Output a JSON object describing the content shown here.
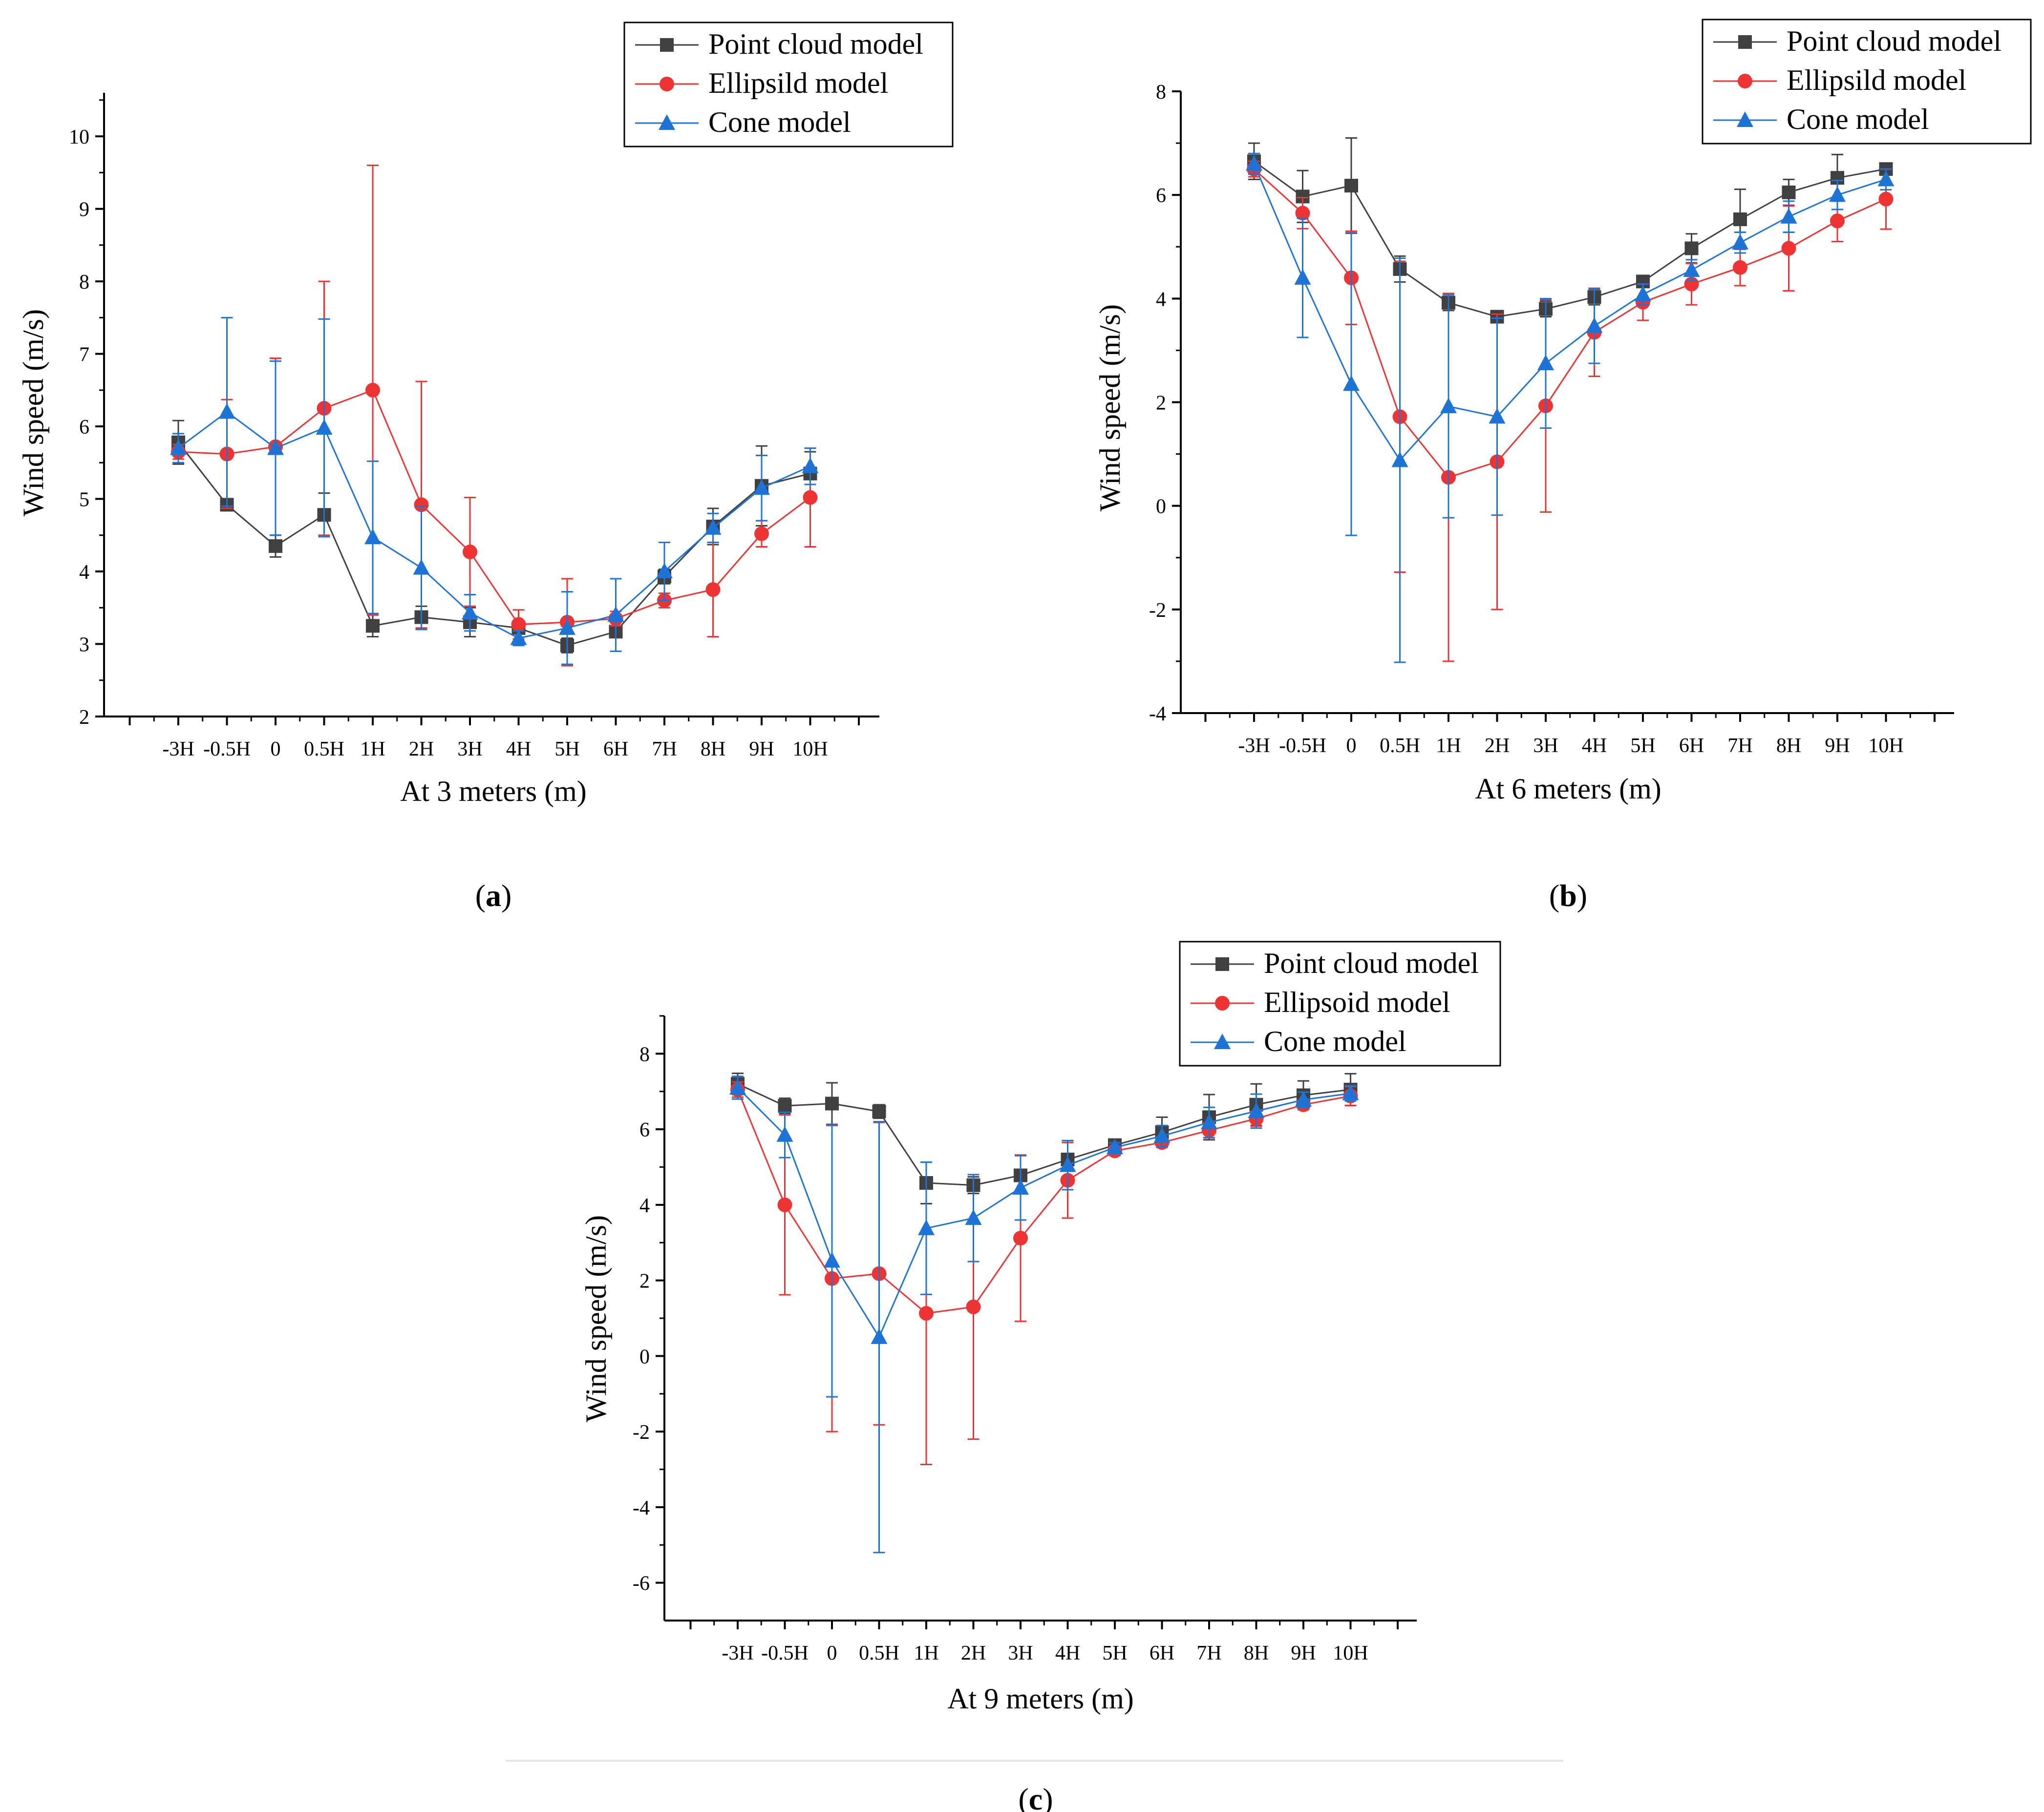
{
  "colors": {
    "point_cloud": "#404040",
    "ellipsoid": "#ee3333",
    "cone": "#1e74d6",
    "axis": "#000000",
    "divider": "#e5e5e5"
  },
  "chart_data": [
    {
      "id": "a",
      "type": "line",
      "caption_paren_open": "(",
      "caption_letter": "a",
      "caption_paren_close": ")",
      "xlabel": "At 3 meters (m)",
      "ylabel": "Wind speed (m/s)",
      "categories": [
        "-3H",
        "-0.5H",
        "0",
        "0.5H",
        "1H",
        "2H",
        "3H",
        "4H",
        "5H",
        "6H",
        "7H",
        "8H",
        "9H",
        "10H"
      ],
      "ylim": [
        2,
        10.6
      ],
      "yticks": [
        2,
        3,
        4,
        5,
        6,
        7,
        8,
        9,
        10
      ],
      "ytick_labels": [
        "2",
        "3",
        "4",
        "5",
        "6",
        "7",
        "8",
        "9",
        "10"
      ],
      "legend_position": "top-right",
      "series": [
        {
          "name": "Point cloud model",
          "color_key": "point_cloud",
          "marker": "square",
          "values": [
            5.78,
            4.92,
            4.35,
            4.78,
            3.25,
            3.37,
            3.3,
            3.22,
            2.98,
            3.17,
            3.93,
            4.62,
            5.18,
            5.35
          ],
          "errors": [
            0.3,
            0.05,
            0.15,
            0.3,
            0.15,
            0.15,
            0.2,
            0.05,
            0.1,
            0.05,
            0.1,
            0.25,
            0.55,
            0.3
          ]
        },
        {
          "name": "Ellipsild model",
          "color_key": "ellipsoid",
          "marker": "circle",
          "values": [
            5.65,
            5.62,
            5.72,
            6.25,
            6.5,
            4.92,
            4.27,
            3.27,
            3.3,
            3.35,
            3.6,
            3.75,
            4.52,
            5.02
          ],
          "errors": [
            0.1,
            0.75,
            1.22,
            1.75,
            3.1,
            1.7,
            0.75,
            0.2,
            0.6,
            0.1,
            0.1,
            0.65,
            0.18,
            0.68
          ]
        },
        {
          "name": "Cone model",
          "color_key": "cone",
          "marker": "triangle",
          "values": [
            5.7,
            6.2,
            5.7,
            5.98,
            4.47,
            4.05,
            3.43,
            3.08,
            3.22,
            3.4,
            4.0,
            4.6,
            5.15,
            5.45
          ],
          "errors": [
            0.2,
            1.3,
            1.2,
            1.5,
            1.05,
            0.85,
            0.25,
            0.1,
            0.5,
            0.5,
            0.4,
            0.2,
            0.45,
            0.25
          ]
        }
      ]
    },
    {
      "id": "b",
      "type": "line",
      "caption_paren_open": "(",
      "caption_letter": "b",
      "caption_paren_close": ")",
      "xlabel": "At 6 meters (m)",
      "ylabel": "Wind speed (m/s)",
      "categories": [
        "-3H",
        "-0.5H",
        "0",
        "0.5H",
        "1H",
        "2H",
        "3H",
        "4H",
        "5H",
        "6H",
        "7H",
        "8H",
        "9H",
        "10H"
      ],
      "ylim": [
        -4,
        8
      ],
      "yticks": [
        -4,
        -2,
        0,
        2,
        4,
        6,
        8
      ],
      "ytick_labels": [
        "-4",
        "-2",
        "0",
        "2",
        "4",
        "6",
        "8"
      ],
      "legend_position": "top-right",
      "series": [
        {
          "name": "Point cloud model",
          "color_key": "point_cloud",
          "marker": "square",
          "values": [
            6.65,
            5.97,
            6.18,
            4.57,
            3.92,
            3.65,
            3.8,
            4.03,
            4.33,
            4.97,
            5.53,
            6.05,
            6.33,
            6.5
          ],
          "errors": [
            0.35,
            0.5,
            0.92,
            0.25,
            0.15,
            0.1,
            0.15,
            0.15,
            0.1,
            0.28,
            0.58,
            0.25,
            0.45,
            0.1
          ]
        },
        {
          "name": "Ellipsild model",
          "color_key": "ellipsoid",
          "marker": "circle",
          "values": [
            6.5,
            5.65,
            4.4,
            1.72,
            0.55,
            0.85,
            1.93,
            3.35,
            3.93,
            4.28,
            4.6,
            4.97,
            5.5,
            5.92
          ],
          "errors": [
            0.15,
            0.3,
            0.9,
            3.0,
            3.55,
            2.85,
            2.05,
            0.85,
            0.35,
            0.4,
            0.35,
            0.82,
            0.4,
            0.58
          ]
        },
        {
          "name": "Cone model",
          "color_key": "cone",
          "marker": "triangle",
          "values": [
            6.6,
            4.4,
            2.35,
            0.88,
            1.92,
            1.72,
            2.75,
            3.47,
            4.08,
            4.55,
            5.08,
            5.58,
            6.0,
            6.3
          ],
          "errors": [
            0.2,
            1.15,
            2.92,
            3.9,
            2.15,
            1.9,
            1.25,
            0.72,
            0.2,
            0.2,
            0.2,
            0.3,
            0.28,
            0.2
          ]
        }
      ]
    },
    {
      "id": "c",
      "type": "line",
      "caption_paren_open": "(",
      "caption_letter": "c",
      "caption_paren_close": ")",
      "xlabel": "At 9 meters (m)",
      "ylabel": "Wind speed (m/s)",
      "categories": [
        "-3H",
        "-0.5H",
        "0",
        "0.5H",
        "1H",
        "2H",
        "3H",
        "4H",
        "5H",
        "6H",
        "7H",
        "8H",
        "9H",
        "10H"
      ],
      "ylim": [
        -7,
        9
      ],
      "yticks": [
        -6,
        -4,
        -2,
        0,
        2,
        4,
        6,
        8
      ],
      "ytick_labels": [
        "-6",
        "-4",
        "-2",
        "0",
        "2",
        "4",
        "6",
        "8"
      ],
      "legend_position": "top-right",
      "series": [
        {
          "name": "Point cloud model",
          "color_key": "point_cloud",
          "marker": "square",
          "values": [
            7.2,
            6.62,
            6.68,
            6.47,
            4.58,
            4.52,
            4.78,
            5.2,
            5.58,
            5.92,
            6.32,
            6.65,
            6.9,
            7.05
          ],
          "errors": [
            0.28,
            0.2,
            0.55,
            0.18,
            0.55,
            0.22,
            0.15,
            0.5,
            0.12,
            0.4,
            0.6,
            0.55,
            0.38,
            0.42
          ]
        },
        {
          "name": "Ellipsoid model",
          "color_key": "ellipsoid",
          "marker": "circle",
          "values": [
            7.05,
            4.0,
            2.05,
            2.18,
            1.13,
            1.3,
            3.12,
            4.65,
            5.43,
            5.65,
            5.97,
            6.28,
            6.65,
            6.88
          ],
          "errors": [
            0.2,
            2.38,
            4.05,
            4.0,
            4.0,
            3.5,
            2.2,
            1.0,
            0.12,
            0.12,
            0.2,
            0.2,
            0.12,
            0.25
          ]
        },
        {
          "name": "Cone model",
          "color_key": "cone",
          "marker": "triangle",
          "values": [
            7.1,
            5.85,
            2.52,
            0.5,
            3.38,
            3.65,
            4.45,
            5.05,
            5.52,
            5.82,
            6.18,
            6.48,
            6.78,
            6.95
          ],
          "errors": [
            0.3,
            0.6,
            3.6,
            5.7,
            1.75,
            1.15,
            0.85,
            0.65,
            0.12,
            0.28,
            0.4,
            0.45,
            0.2,
            0.2
          ]
        }
      ]
    }
  ]
}
